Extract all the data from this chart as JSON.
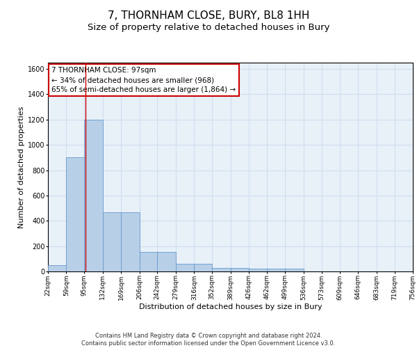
{
  "title": "7, THORNHAM CLOSE, BURY, BL8 1HH",
  "subtitle": "Size of property relative to detached houses in Bury",
  "xlabel": "Distribution of detached houses by size in Bury",
  "ylabel": "Number of detached properties",
  "bar_edges": [
    22,
    59,
    95,
    132,
    169,
    206,
    242,
    279,
    316,
    352,
    389,
    426,
    462,
    499,
    536,
    573,
    609,
    646,
    683,
    719,
    756
  ],
  "bar_heights": [
    50,
    900,
    1200,
    470,
    470,
    155,
    155,
    60,
    60,
    30,
    30,
    20,
    20,
    20,
    0,
    0,
    0,
    0,
    0,
    0
  ],
  "bar_color": "#b8cfe8",
  "bar_edge_color": "#6699cc",
  "grid_color": "#ccddef",
  "background_color": "#e8f0f8",
  "property_line_x": 97,
  "property_line_color": "#cc0000",
  "ylim": [
    0,
    1650
  ],
  "annotation_text": "7 THORNHAM CLOSE: 97sqm\n← 34% of detached houses are smaller (968)\n65% of semi-detached houses are larger (1,864) →",
  "annotation_box_color": "#cc0000",
  "footer_line1": "Contains HM Land Registry data © Crown copyright and database right 2024.",
  "footer_line2": "Contains public sector information licensed under the Open Government Licence v3.0.",
  "title_fontsize": 11,
  "subtitle_fontsize": 9.5,
  "annotation_fontsize": 7.5,
  "tick_label_fontsize": 6.5,
  "axis_label_fontsize": 8,
  "ylabel_fontsize": 8
}
